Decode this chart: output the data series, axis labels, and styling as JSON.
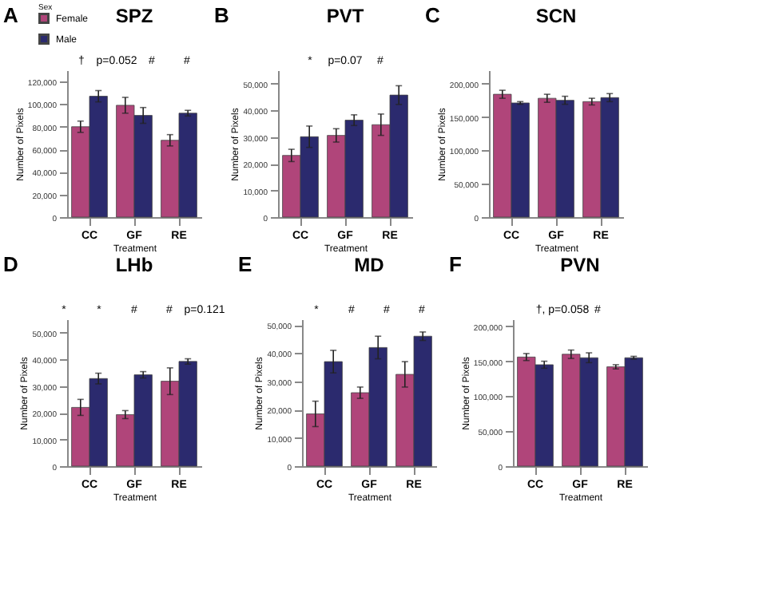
{
  "chart_data": [
    {
      "type": "bar",
      "title": "SPZ",
      "grid": false,
      "xlabel": "Treatment",
      "ylabel": "Number of Pixels",
      "legend_title": "Sex",
      "legend": "top left",
      "categories": [
        "CC",
        "GF",
        "RE"
      ],
      "ylim": [
        0,
        130000
      ],
      "yticks": [
        0,
        {
          "value": 20000,
          "label": "20,000"
        },
        {
          "value": 40000,
          "label": "40,000"
        },
        {
          "value": 60000,
          "label": "60,000"
        },
        {
          "value": 80000,
          "label": "80,000"
        },
        {
          "value": 100000,
          "label": "100,000"
        },
        {
          "value": 120000,
          "label": "120,000"
        }
      ],
      "series": [
        {
          "name": "Female",
          "color": "#b0457a",
          "values": [
            80000,
            99000,
            68000
          ],
          "errors": [
            5000,
            7000,
            5000
          ]
        },
        {
          "name": "Male",
          "color": "#2b2a6e",
          "values": [
            107000,
            90000,
            92000
          ],
          "errors": [
            5000,
            7000,
            2500
          ]
        }
      ],
      "annotations": [
        "A",
        "†",
        "p=0.052",
        "#",
        "#"
      ]
    },
    {
      "type": "bar",
      "title": "PVT",
      "grid": false,
      "xlabel": "Treatment",
      "ylabel": "Number of Pixels",
      "categories": [
        "CC",
        "GF",
        "RE"
      ],
      "ylim": [
        0,
        55000
      ],
      "yticks": [
        0,
        {
          "value": 10000,
          "label": "10,000"
        },
        {
          "value": 20000,
          "label": "20,000"
        },
        {
          "value": 30000,
          "label": "30,000"
        },
        {
          "value": 40000,
          "label": "40,000"
        },
        {
          "value": 50000,
          "label": "50,000"
        }
      ],
      "series": [
        {
          "color": "#b0457a",
          "values": [
            23100,
            30600,
            34600
          ],
          "errors": [
            2300,
            2500,
            4000
          ]
        },
        {
          "color": "#2b2a6e",
          "values": [
            30100,
            36300,
            45700
          ],
          "errors": [
            4000,
            2000,
            3500
          ]
        }
      ],
      "annotations": [
        "B",
        "*",
        "p=0.07",
        "#"
      ]
    },
    {
      "type": "bar",
      "title": "SCN",
      "grid": false,
      "xlabel": "Treatment",
      "ylabel": "Number of Pixels",
      "categories": [
        "CC",
        "GF",
        "RE"
      ],
      "ylim": [
        0,
        220000
      ],
      "yticks": [
        0,
        {
          "value": 50000,
          "label": "50,000"
        },
        {
          "value": 100000,
          "label": "100,000"
        },
        {
          "value": 150000,
          "label": "150,000"
        },
        {
          "value": 200000,
          "label": "200,000"
        }
      ],
      "series": [
        {
          "color": "#b0457a",
          "values": [
            184000,
            178000,
            173000
          ],
          "errors": [
            6000,
            6000,
            5000
          ]
        },
        {
          "color": "#2b2a6e",
          "values": [
            171000,
            175000,
            179000
          ],
          "errors": [
            2000,
            6000,
            6000
          ]
        }
      ],
      "annotations": [
        "C"
      ]
    },
    {
      "type": "bar",
      "title": "LHb",
      "grid": false,
      "xlabel": "Treatment",
      "ylabel": "Number of Pixels",
      "categories": [
        "CC",
        "GF",
        "RE"
      ],
      "ylim": [
        0,
        55000
      ],
      "yticks": [
        0,
        {
          "value": 10000,
          "label": "10,000"
        },
        {
          "value": 20000,
          "label": "20,000"
        },
        {
          "value": 30000,
          "label": "30,000"
        },
        {
          "value": 40000,
          "label": "40,000"
        },
        {
          "value": 50000,
          "label": "50,000"
        }
      ],
      "series": [
        {
          "color": "#b0457a",
          "values": [
            22000,
            19300,
            31800
          ],
          "errors": [
            3000,
            1500,
            5000
          ]
        },
        {
          "color": "#2b2a6e",
          "values": [
            32800,
            34200,
            39200
          ],
          "errors": [
            2000,
            1200,
            1000
          ]
        }
      ],
      "annotations": [
        "D",
        "*",
        "*",
        "#",
        "#",
        "p=0.121"
      ]
    },
    {
      "type": "bar",
      "title": "MD",
      "grid": false,
      "xlabel": "Treatment",
      "ylabel": "Number of Pixels",
      "categories": [
        "CC",
        "GF",
        "RE"
      ],
      "ylim": [
        0,
        52000
      ],
      "yticks": [
        0,
        {
          "value": 10000,
          "label": "10,000"
        },
        {
          "value": 20000,
          "label": "20,000"
        },
        {
          "value": 30000,
          "label": "30,000"
        },
        {
          "value": 40000,
          "label": "40,000"
        },
        {
          "value": 50000,
          "label": "50,000"
        }
      ],
      "series": [
        {
          "color": "#b0457a",
          "values": [
            18500,
            26000,
            32500
          ],
          "errors": [
            4500,
            2000,
            4500
          ]
        },
        {
          "color": "#2b2a6e",
          "values": [
            37000,
            42000,
            46000
          ],
          "errors": [
            4000,
            4000,
            1500
          ]
        }
      ],
      "annotations": [
        "E",
        "*",
        "#",
        "#",
        "#"
      ]
    },
    {
      "type": "bar",
      "title": "PVN",
      "grid": false,
      "xlabel": "Treatment",
      "ylabel": "Number of Pixels",
      "categories": [
        "CC",
        "GF",
        "RE"
      ],
      "ylim": [
        0,
        210000
      ],
      "yticks": [
        0,
        {
          "value": 50000,
          "label": "50,000"
        },
        {
          "value": 100000,
          "label": "100,000"
        },
        {
          "value": 150000,
          "label": "150,000"
        },
        {
          "value": 200000,
          "label": "200,000"
        }
      ],
      "series": [
        {
          "color": "#b0457a",
          "values": [
            156000,
            160000,
            142000
          ],
          "errors": [
            5000,
            6000,
            3000
          ]
        },
        {
          "color": "#2b2a6e",
          "values": [
            145000,
            155000,
            155000
          ],
          "errors": [
            5000,
            7000,
            2000
          ]
        }
      ],
      "annotations": [
        "F",
        "†, p=0.058",
        "#"
      ]
    }
  ]
}
